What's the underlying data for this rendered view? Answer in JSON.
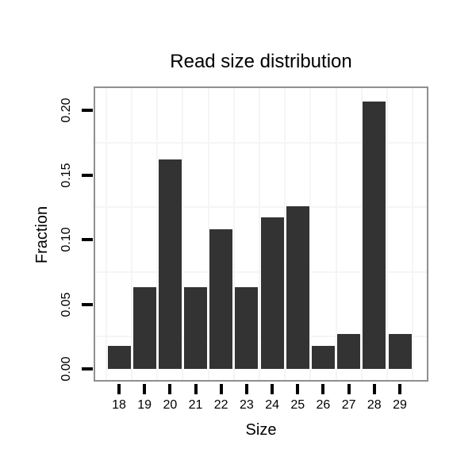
{
  "chart_data": {
    "type": "bar",
    "title": "Read size distribution",
    "xlabel": "Size",
    "ylabel": "Fraction",
    "categories": [
      "18",
      "19",
      "20",
      "21",
      "22",
      "23",
      "24",
      "25",
      "26",
      "27",
      "28",
      "29"
    ],
    "values": [
      0.018,
      0.063,
      0.162,
      0.063,
      0.108,
      0.063,
      0.117,
      0.126,
      0.018,
      0.027,
      0.207,
      0.027
    ],
    "yticks": [
      0.0,
      0.05,
      0.1,
      0.15,
      0.2
    ],
    "ytick_labels": [
      "0.00",
      "0.05",
      "0.10",
      "0.15",
      "0.20"
    ],
    "ylim": [
      -0.01,
      0.218
    ],
    "grid": "minor-only",
    "legend": "none",
    "colors": {
      "bar_fill": "#333333",
      "panel_border": "#8f8f8f",
      "grid_minor": "#f5f5f5",
      "tick": "#000000",
      "text": "#000000",
      "background": "#ffffff"
    }
  }
}
